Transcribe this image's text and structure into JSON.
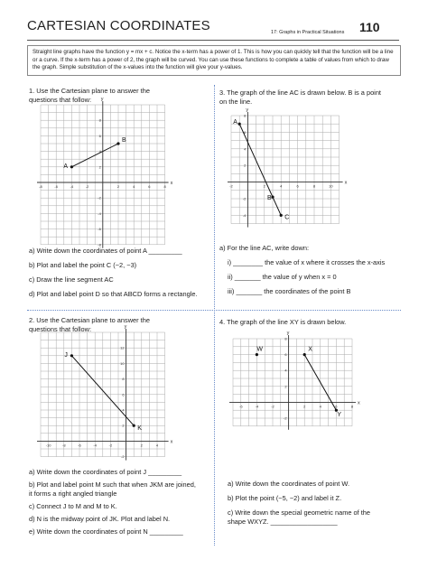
{
  "header": {
    "title": "CARTESIAN COORDINATES",
    "section": "17: Graphs in Practical Situations",
    "page": "110"
  },
  "intro": "Straight line graphs have the function y = mx + c. Notice the x-term has a power of 1. This is how you can quickly tell that the function will be a line or a curve. If the x-term has a power of 2, the graph will be curved. You can use these functions to complete a table of values from which to draw the graph. Simple substitution of the x-values into the function will give your y-values.",
  "q1": {
    "prompt": "1. Use the Cartesian plane to answer the questions that follow:",
    "plane": {
      "x_label": "x",
      "y_label": "y",
      "x_ticks": [
        "-8",
        "-6",
        "-4",
        "-2",
        "2",
        "4",
        "6",
        "8"
      ],
      "y_ticks": [
        "8",
        "6",
        "4",
        "2",
        "-2",
        "-4",
        "-6",
        "-8"
      ],
      "points": [
        "A",
        "B"
      ]
    },
    "parts": [
      "a) Write down the coordinates of point A _________",
      "b) Plot and label the point C (−2, −3)",
      "c) Draw the line segment AC",
      "d) Plot and label point D so that ABCD forms a rectangle."
    ]
  },
  "q3": {
    "prompt": "3. The graph of the line AC is drawn below. B is a point on the line.",
    "plane": {
      "x_label": "x",
      "y_label": "y",
      "x_ticks": [
        "-2",
        "2",
        "4",
        "6",
        "8",
        "10"
      ],
      "y_ticks": [
        "8",
        "6",
        "4",
        "2",
        "-2",
        "-4"
      ],
      "points": [
        "A",
        "B",
        "C"
      ]
    },
    "lead": "a) For the line AC, write down:",
    "parts": [
      "i) ________ the value of x where it crosses the x-axis",
      "ii) _______ the value of y when x = 0",
      "iii) _______ the coordinates of the point B"
    ]
  },
  "q2": {
    "prompt": "2. Use the Cartesian plane to answer the questions that follow:",
    "plane": {
      "x_label": "x",
      "y_label": "y",
      "x_ticks": [
        "-10",
        "-8",
        "-6",
        "-4",
        "-2",
        "2",
        "4"
      ],
      "y_ticks": [
        "12",
        "10",
        "8",
        "6",
        "4",
        "2",
        "-2"
      ],
      "points": [
        "J",
        "K"
      ]
    },
    "parts": [
      "a) Write down the coordinates of point J _________",
      "b) Plot and label point M such that when JKM are joined, it forms a right angled triangle",
      "c) Connect J to M and M to K.",
      "d) N is the midway point of JK. Plot and label N.",
      "e) Write down the coordinates of point N _________"
    ]
  },
  "q4": {
    "prompt": "4. The graph of the line XY is drawn below.",
    "plane": {
      "x_label": "x",
      "y_label": "y",
      "x_ticks": [
        "-6",
        "-4",
        "-2",
        "2",
        "4",
        "6",
        "8"
      ],
      "y_ticks": [
        "8",
        "6",
        "4",
        "2",
        "-2"
      ],
      "points": [
        "W",
        "X",
        "Y"
      ]
    },
    "parts": [
      "a) Write down the coordinates of point W.",
      "b) Plot the point (−5, −2) and label it Z.",
      "c) Write down the special geometric name of the shape WXYZ. __________________"
    ]
  }
}
